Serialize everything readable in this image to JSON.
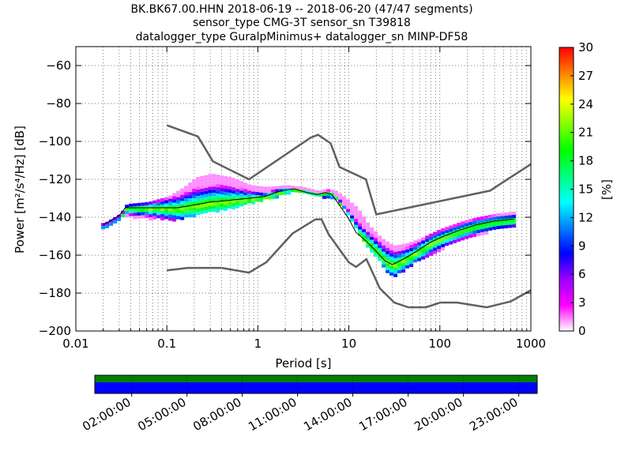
{
  "title_lines": [
    "BK.BK67.00.HHN   2018-06-19 -- 2018-06-20  (47/47 segments)",
    "sensor_type CMG-3T sensor_sn T39818",
    "datalogger_type GuralpMinimus+ datalogger_sn MINP-DF58"
  ],
  "chart_data": {
    "type": "heatmap",
    "title": "BK.BK67.00.HHN   2018-06-19 -- 2018-06-20  (47/47 segments)",
    "xlabel": "Period [s]",
    "ylabel": "Power [m²/s⁴/Hz] [dB]",
    "x_scale": "log",
    "xlim": [
      0.01,
      1000
    ],
    "ylim": [
      -200,
      -50
    ],
    "x_ticks": [
      {
        "value": 0.01,
        "label": "0.01"
      },
      {
        "value": 0.1,
        "label": "0.1"
      },
      {
        "value": 1,
        "label": "1"
      },
      {
        "value": 10,
        "label": "10"
      },
      {
        "value": 100,
        "label": "100"
      },
      {
        "value": 1000,
        "label": "1000"
      }
    ],
    "y_ticks": [
      -60,
      -80,
      -100,
      -120,
      -140,
      -160,
      -180,
      -200
    ],
    "grid": true,
    "colorbar": {
      "label": "[%]",
      "min": 0,
      "max": 30,
      "ticks": [
        0,
        3,
        6,
        9,
        12,
        15,
        18,
        21,
        24,
        27,
        30
      ],
      "colormap": [
        "#ffffff",
        "#ff00ff",
        "#9b00ff",
        "#0000ff",
        "#0080ff",
        "#00ffff",
        "#00ff80",
        "#00ff00",
        "#80ff00",
        "#ffff00",
        "#ff8000",
        "#ff0000"
      ]
    },
    "nhnm": [
      [
        0.1,
        -91.5
      ],
      [
        0.22,
        -97.4
      ],
      [
        0.32,
        -110.5
      ],
      [
        0.8,
        -120
      ],
      [
        3.8,
        -98
      ],
      [
        4.6,
        -96.5
      ],
      [
        6.3,
        -101
      ],
      [
        7.9,
        -113.5
      ],
      [
        15.4,
        -120
      ],
      [
        20,
        -138.5
      ],
      [
        354.8,
        -126
      ],
      [
        1000,
        -112
      ]
    ],
    "nlnm": [
      [
        0.1,
        -168
      ],
      [
        0.17,
        -166.7
      ],
      [
        0.4,
        -166.7
      ],
      [
        0.8,
        -169.2
      ],
      [
        1.24,
        -163.7
      ],
      [
        2.4,
        -148.6
      ],
      [
        4.3,
        -141.1
      ],
      [
        5,
        -141.1
      ],
      [
        6,
        -149
      ],
      [
        10,
        -163.8
      ],
      [
        12,
        -166.2
      ],
      [
        15.6,
        -162.1
      ],
      [
        21.9,
        -177.5
      ],
      [
        31.6,
        -185
      ],
      [
        45,
        -187.5
      ],
      [
        70,
        -187.5
      ],
      [
        101,
        -185
      ],
      [
        154,
        -185
      ],
      [
        328,
        -187.5
      ],
      [
        600,
        -184.4
      ],
      [
        1000,
        -178.5
      ]
    ],
    "psd_median": [
      [
        0.02,
        -144
      ],
      [
        0.03,
        -139
      ],
      [
        0.035,
        -135
      ],
      [
        0.05,
        -135
      ],
      [
        0.08,
        -135
      ],
      [
        0.13,
        -135
      ],
      [
        0.2,
        -133.5
      ],
      [
        0.3,
        -132
      ],
      [
        0.5,
        -131
      ],
      [
        0.8,
        -130
      ],
      [
        1.2,
        -129
      ],
      [
        1.8,
        -126
      ],
      [
        2.5,
        -125
      ],
      [
        3.5,
        -127
      ],
      [
        4.5,
        -128
      ],
      [
        5.5,
        -127
      ],
      [
        6.5,
        -128
      ],
      [
        8,
        -134
      ],
      [
        10,
        -141
      ],
      [
        12,
        -148
      ],
      [
        15,
        -152
      ],
      [
        20,
        -158
      ],
      [
        25,
        -163
      ],
      [
        30,
        -165
      ],
      [
        40,
        -162
      ],
      [
        55,
        -158
      ],
      [
        80,
        -153
      ],
      [
        110,
        -150
      ],
      [
        160,
        -147
      ],
      [
        250,
        -144
      ],
      [
        400,
        -142
      ],
      [
        650,
        -141
      ]
    ],
    "psd_upper": [
      [
        0.02,
        -143
      ],
      [
        0.03,
        -138
      ],
      [
        0.035,
        -133
      ],
      [
        0.06,
        -132
      ],
      [
        0.1,
        -129
      ],
      [
        0.15,
        -124
      ],
      [
        0.2,
        -119
      ],
      [
        0.3,
        -117
      ],
      [
        0.5,
        -119
      ],
      [
        0.8,
        -123
      ],
      [
        1.2,
        -124
      ],
      [
        2,
        -123
      ],
      [
        3,
        -124
      ],
      [
        4.5,
        -126
      ],
      [
        5.5,
        -125
      ],
      [
        7,
        -126
      ],
      [
        9,
        -130
      ],
      [
        12,
        -135
      ],
      [
        16,
        -144
      ],
      [
        22,
        -151
      ],
      [
        30,
        -155
      ],
      [
        40,
        -154
      ],
      [
        60,
        -151
      ],
      [
        100,
        -146
      ],
      [
        200,
        -141
      ],
      [
        400,
        -138
      ],
      [
        650,
        -137
      ]
    ],
    "psd_lower": [
      [
        0.02,
        -145
      ],
      [
        0.03,
        -140
      ],
      [
        0.035,
        -139
      ],
      [
        0.06,
        -140
      ],
      [
        0.1,
        -141
      ],
      [
        0.15,
        -140
      ],
      [
        0.25,
        -137
      ],
      [
        0.4,
        -136
      ],
      [
        0.7,
        -133
      ],
      [
        1,
        -131
      ],
      [
        1.5,
        -129
      ],
      [
        2.5,
        -126
      ],
      [
        3.5,
        -128
      ],
      [
        5,
        -129
      ],
      [
        7,
        -130
      ],
      [
        9,
        -137
      ],
      [
        12,
        -147
      ],
      [
        15,
        -154
      ],
      [
        20,
        -162
      ],
      [
        25,
        -168
      ],
      [
        30,
        -171
      ],
      [
        45,
        -165
      ],
      [
        70,
        -161
      ],
      [
        110,
        -155
      ],
      [
        200,
        -150
      ],
      [
        400,
        -146
      ],
      [
        650,
        -144
      ]
    ]
  },
  "time_axis": {
    "labels": [
      "02:00:00",
      "05:00:00",
      "08:00:00",
      "11:00:00",
      "14:00:00",
      "17:00:00",
      "20:00:00",
      "23:00:00"
    ],
    "start_hour": 0,
    "end_hour": 24,
    "data_color": "#0000ff",
    "coverage_color": "#008000"
  }
}
